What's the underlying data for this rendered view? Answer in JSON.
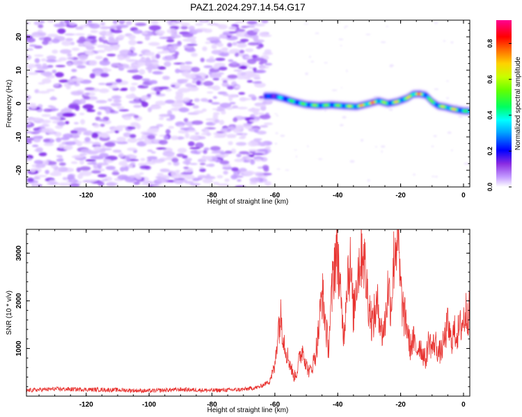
{
  "title": "PAZ1.2024.297.14.54.G17",
  "chart_data": [
    {
      "type": "heatmap",
      "xlabel": "Height of straight line (km)",
      "ylabel": "Frequency (Hz)",
      "xlim": [
        -139,
        2
      ],
      "ylim": [
        -25,
        25
      ],
      "xticks": [
        -120,
        -100,
        -80,
        -60,
        -40,
        -20,
        0
      ],
      "yticks": [
        -20,
        -10,
        0,
        10,
        20
      ],
      "colorbar": {
        "label": "Normalized spectral amplitude",
        "range": [
          0,
          0.93
        ],
        "ticks": [
          0.0,
          0.2,
          0.4,
          0.6,
          0.8
        ],
        "colors": [
          "#ffffff",
          "#a020f0",
          "#0000ff",
          "#00c8ff",
          "#00ff60",
          "#c8ff00",
          "#ffc800",
          "#ff0000",
          "#ff00a0"
        ]
      },
      "noise_region": {
        "x": [
          -139,
          -62
        ],
        "y": [
          -25,
          25
        ],
        "amplitude": [
          0.05,
          0.15
        ]
      },
      "signal_track": {
        "x": [
          -63,
          -60,
          -57,
          -54,
          -50,
          -46,
          -42,
          -38,
          -34,
          -30,
          -27,
          -24,
          -21,
          -18,
          -16,
          -14,
          -12,
          -10,
          -8,
          -6,
          -4,
          -2,
          0,
          2
        ],
        "frequency": [
          2.2,
          2.2,
          1.5,
          0.6,
          -0.3,
          -0.6,
          -0.4,
          -0.7,
          -0.9,
          0.0,
          0.8,
          0.0,
          0.6,
          1.6,
          2.8,
          2.9,
          2.5,
          0.6,
          -0.7,
          -1.0,
          -1.5,
          -1.9,
          -2.2,
          -2.3
        ],
        "amplitude": [
          0.25,
          0.3,
          0.45,
          0.5,
          0.55,
          0.6,
          0.55,
          0.6,
          0.65,
          0.85,
          0.7,
          0.55,
          0.7,
          0.6,
          0.85,
          0.8,
          0.6,
          0.55,
          0.6,
          0.65,
          0.75,
          0.65,
          0.55,
          0.45
        ]
      }
    },
    {
      "type": "line",
      "xlabel": "Height of straight line (km)",
      "ylabel": "SNR (10 * v/v)",
      "xlim": [
        -139,
        2
      ],
      "ylim": [
        0,
        3500
      ],
      "xticks": [
        -120,
        -100,
        -80,
        -60,
        -40,
        -20,
        0
      ],
      "yticks": [
        1000,
        2000,
        3000
      ],
      "series": [
        {
          "color": "#e8322f",
          "x": [
            -139,
            -130,
            -120,
            -110,
            -100,
            -90,
            -80,
            -70,
            -65,
            -62,
            -60,
            -59,
            -58,
            -57,
            -56,
            -55,
            -54,
            -53,
            -52,
            -51,
            -50,
            -49,
            -48,
            -47,
            -46,
            -45,
            -44,
            -43,
            -42,
            -41,
            -40,
            -39,
            -38,
            -37,
            -36,
            -35,
            -34,
            -33,
            -32,
            -31,
            -30,
            -29,
            -28,
            -27,
            -26,
            -25,
            -24,
            -23,
            -22,
            -21,
            -20,
            -19,
            -18,
            -17,
            -16,
            -15,
            -14,
            -13,
            -12,
            -11,
            -10,
            -9,
            -8,
            -7,
            -6,
            -5,
            -4,
            -3,
            -2,
            -1,
            0,
            1,
            2
          ],
          "y": [
            120,
            150,
            140,
            130,
            110,
            140,
            120,
            140,
            190,
            300,
            600,
            1450,
            1650,
            1150,
            850,
            650,
            400,
            500,
            850,
            1000,
            650,
            500,
            650,
            900,
            1400,
            2200,
            1600,
            1000,
            2000,
            2900,
            3050,
            1900,
            1300,
            2600,
            2700,
            1700,
            2500,
            2850,
            3200,
            2400,
            1900,
            1500,
            1800,
            1900,
            1300,
            1500,
            2300,
            1900,
            3050,
            3450,
            2200,
            1700,
            1500,
            1000,
            1200,
            950,
            1100,
            900,
            750,
            1200,
            1000,
            1150,
            900,
            950,
            1200,
            1500,
            1150,
            1350,
            1300,
            1450,
            1600,
            1800,
            1700
          ]
        }
      ]
    }
  ]
}
